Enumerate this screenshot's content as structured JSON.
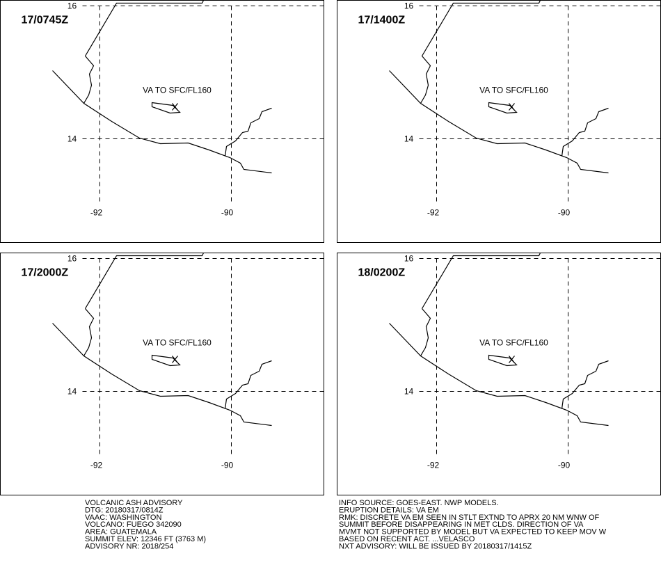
{
  "panels": [
    {
      "time": "17/0745Z",
      "label": "VA TO SFC/FL160"
    },
    {
      "time": "17/1400Z",
      "label": "VA TO SFC/FL160"
    },
    {
      "time": "17/2000Z",
      "label": "VA TO SFC/FL160"
    },
    {
      "time": "18/0200Z",
      "label": "VA TO SFC/FL160"
    }
  ],
  "grid": {
    "lat": [
      "16",
      "14"
    ],
    "lon": [
      "-92",
      "-90"
    ]
  },
  "advisory": {
    "left": [
      "VOLCANIC ASH ADVISORY",
      "DTG: 20180317/0814Z",
      "VAAC: WASHINGTON",
      "VOLCANO: FUEGO 342090",
      "AREA: GUATEMALA",
      "SUMMIT ELEV: 12346 FT (3763 M)",
      "ADVISORY NR: 2018/254"
    ],
    "right": [
      "INFO SOURCE: GOES-EAST. NWP MODELS.",
      "ERUPTION DETAILS: VA EM",
      "RMK: DISCRETE VA EM SEEN IN STLT EXTND TO APRX 20 NM WNW OF",
      "SUMMIT BEFORE DISAPPEARING IN MET CLDS. DIRECTION OF VA",
      "MVMT NOT SUPPORTED BY MODEL BUT VA EXPECTED TO KEEP MOV W",
      "BASED ON RECENT ACT. ...VELASCO",
      "NXT ADVISORY: WILL BE ISSUED BY 20180317/1415Z"
    ]
  }
}
